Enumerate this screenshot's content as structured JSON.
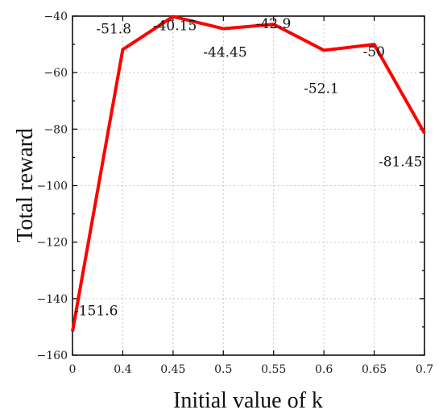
{
  "chart_data": {
    "type": "line",
    "categories": [
      "0",
      "0.4",
      "0.45",
      "0.5",
      "0.55",
      "0.6",
      "0.65",
      "0.7"
    ],
    "series": [
      {
        "values": [
          -151.6,
          -51.8,
          -40.15,
          -44.45,
          -42.9,
          -52.1,
          -50,
          -81.45
        ],
        "color": "#ff0000"
      }
    ],
    "data_labels": [
      "-151.6",
      "-51.8",
      "-40.15",
      "-44.45",
      "-42.9",
      "-52.1",
      "-50",
      "-81.45"
    ],
    "xlabel": "Initial value of k",
    "ylabel": "Total reward",
    "ylim": [
      -160,
      -40
    ],
    "yticks": [
      -40,
      -60,
      -80,
      -100,
      -120,
      -140,
      -160
    ],
    "xtick_labels": [
      "0",
      "0.4",
      "0.45",
      "0.5",
      "0.55",
      "0.6",
      "0.65",
      "0.7"
    ],
    "grid": true,
    "legend": "none"
  }
}
